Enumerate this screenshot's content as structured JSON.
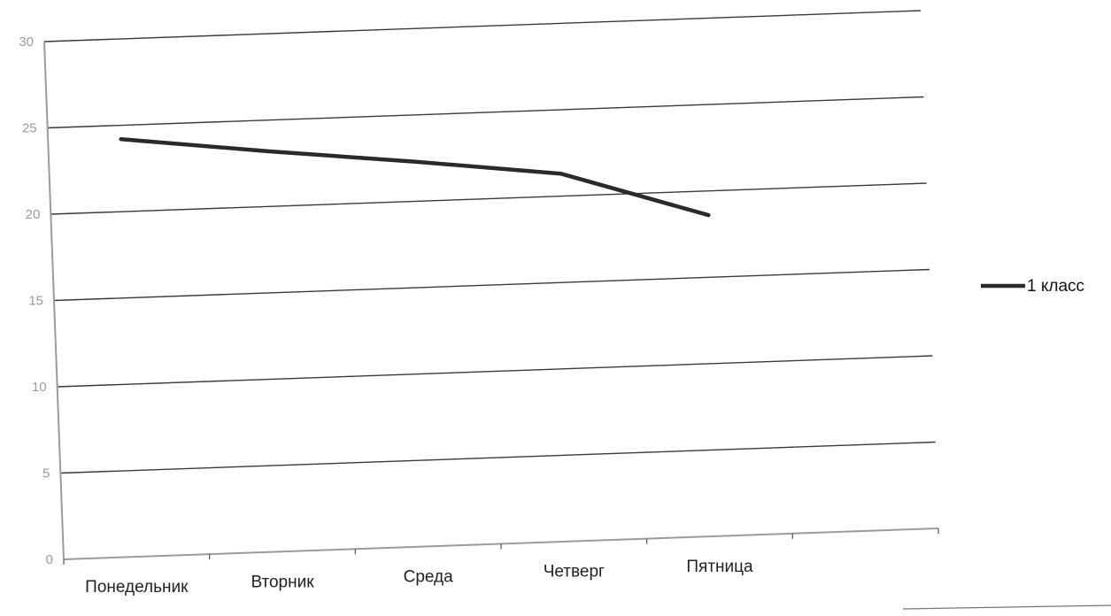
{
  "chart_data": {
    "type": "line",
    "title": "",
    "xlabel": "",
    "ylabel": "",
    "categories": [
      "Понедельник",
      "Вторник",
      "Среда",
      "Четверг",
      "Пятница"
    ],
    "series": [
      {
        "name": "1 класс",
        "values": [
          24.2,
          23.2,
          22.3,
          21.3,
          18.6
        ],
        "color": "#2a2a2a"
      }
    ],
    "ylim": [
      0,
      30
    ],
    "yticks": [
      0,
      5,
      10,
      15,
      20,
      25,
      30
    ],
    "grid": true,
    "legend": "right"
  }
}
